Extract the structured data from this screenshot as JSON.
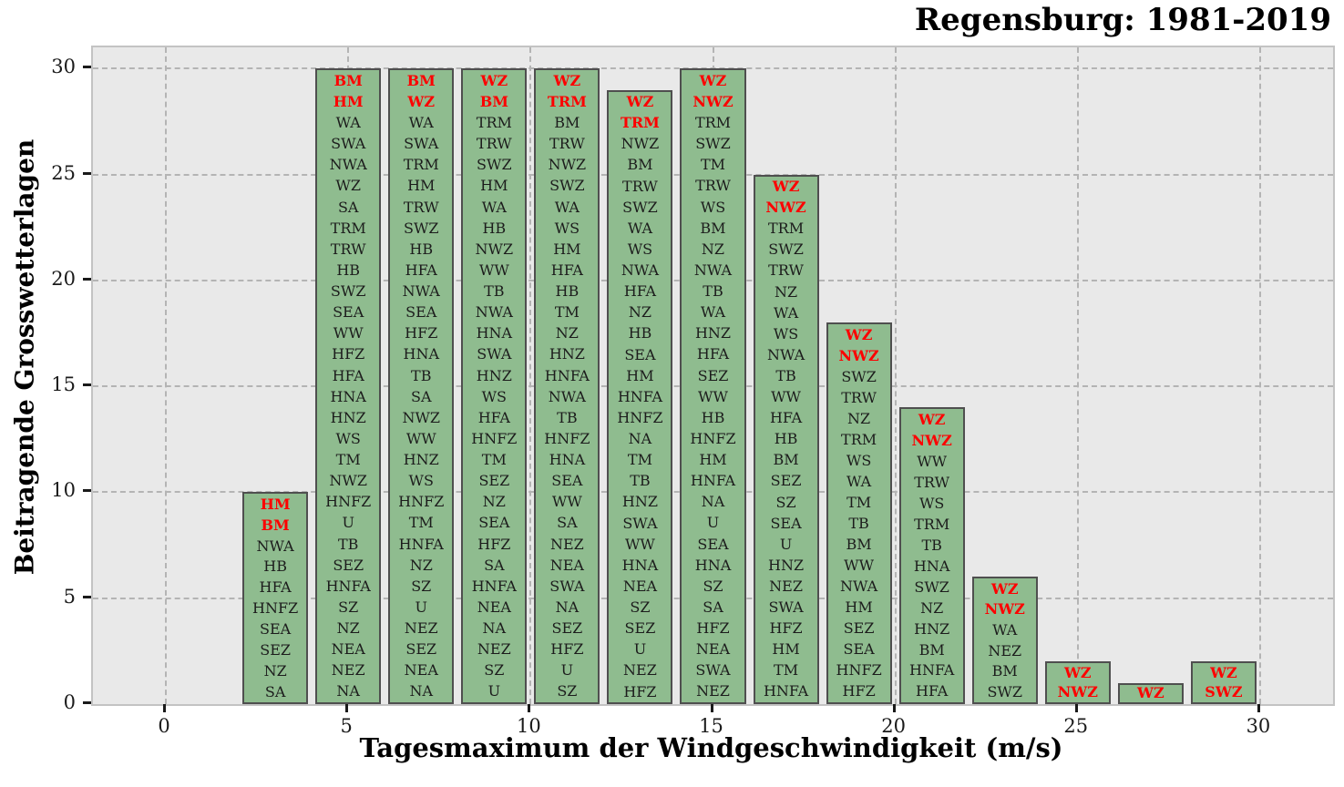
{
  "chart_data": {
    "type": "bar",
    "title": "Regensburg: 1981-2019",
    "xlabel": "Tagesmaximum der Windgeschwindigkeit (m/s)",
    "ylabel": "Beitragende Grosswetterlagen",
    "xlim": [
      -2,
      32
    ],
    "ylim": [
      0,
      31
    ],
    "xticks": [
      0,
      5,
      10,
      15,
      20,
      25,
      30
    ],
    "yticks": [
      0,
      5,
      10,
      15,
      20,
      25,
      30
    ],
    "grid": "both-dashed",
    "legend": "none",
    "bar_width": 1.8,
    "colors": {
      "bar_fill": "#8fbc8f",
      "bar_edge": "#4f4f4f",
      "highlight_label": "#fd0000",
      "normal_label": "#1c1c1c",
      "plot_background": "#e9e9e9",
      "gridline": "#b4b4b4"
    },
    "bars": [
      {
        "x": 3,
        "height": 10,
        "red_count": 2,
        "labels": [
          "HM",
          "BM",
          "NWA",
          "HB",
          "HFA",
          "HNFZ",
          "SEA",
          "SEZ",
          "NZ",
          "SA"
        ]
      },
      {
        "x": 5,
        "height": 30,
        "red_count": 2,
        "labels": [
          "BM",
          "HM",
          "WA",
          "SWA",
          "NWA",
          "WZ",
          "SA",
          "TRM",
          "TRW",
          "HB",
          "SWZ",
          "SEA",
          "WW",
          "HFZ",
          "HFA",
          "HNA",
          "HNZ",
          "WS",
          "TM",
          "NWZ",
          "HNFZ",
          "U",
          "TB",
          "SEZ",
          "HNFA",
          "SZ",
          "NZ",
          "NEA",
          "NEZ",
          "NA"
        ]
      },
      {
        "x": 7,
        "height": 30,
        "red_count": 2,
        "labels": [
          "BM",
          "WZ",
          "WA",
          "SWA",
          "TRM",
          "HM",
          "TRW",
          "SWZ",
          "HB",
          "HFA",
          "NWA",
          "SEA",
          "HFZ",
          "HNA",
          "TB",
          "SA",
          "NWZ",
          "WW",
          "HNZ",
          "WS",
          "HNFZ",
          "TM",
          "HNFA",
          "NZ",
          "SZ",
          "U",
          "NEZ",
          "SEZ",
          "NEA",
          "NA"
        ]
      },
      {
        "x": 9,
        "height": 30,
        "red_count": 2,
        "labels": [
          "WZ",
          "BM",
          "TRM",
          "TRW",
          "SWZ",
          "HM",
          "WA",
          "HB",
          "NWZ",
          "WW",
          "TB",
          "NWA",
          "HNA",
          "SWA",
          "HNZ",
          "WS",
          "HFA",
          "HNFZ",
          "TM",
          "SEZ",
          "NZ",
          "SEA",
          "HFZ",
          "SA",
          "HNFA",
          "NEA",
          "NA",
          "NEZ",
          "SZ",
          "U"
        ]
      },
      {
        "x": 11,
        "height": 30,
        "red_count": 2,
        "labels": [
          "WZ",
          "TRM",
          "BM",
          "TRW",
          "NWZ",
          "SWZ",
          "WA",
          "WS",
          "HM",
          "HFA",
          "HB",
          "TM",
          "NZ",
          "HNZ",
          "HNFA",
          "NWA",
          "TB",
          "HNFZ",
          "HNA",
          "SEA",
          "WW",
          "SA",
          "NEZ",
          "NEA",
          "SWA",
          "NA",
          "SEZ",
          "HFZ",
          "U",
          "SZ"
        ]
      },
      {
        "x": 13,
        "height": 29,
        "red_count": 2,
        "labels": [
          "WZ",
          "TRM",
          "NWZ",
          "BM",
          "TRW",
          "SWZ",
          "WA",
          "WS",
          "NWA",
          "HFA",
          "NZ",
          "HB",
          "SEA",
          "HM",
          "HNFA",
          "HNFZ",
          "NA",
          "TM",
          "TB",
          "HNZ",
          "SWA",
          "WW",
          "HNA",
          "NEA",
          "SZ",
          "SEZ",
          "U",
          "NEZ",
          "HFZ"
        ]
      },
      {
        "x": 15,
        "height": 30,
        "red_count": 2,
        "labels": [
          "WZ",
          "NWZ",
          "TRM",
          "SWZ",
          "TM",
          "TRW",
          "WS",
          "BM",
          "NZ",
          "NWA",
          "TB",
          "WA",
          "HNZ",
          "HFA",
          "SEZ",
          "WW",
          "HB",
          "HNFZ",
          "HM",
          "HNFA",
          "NA",
          "U",
          "SEA",
          "HNA",
          "SZ",
          "SA",
          "HFZ",
          "NEA",
          "SWA",
          "NEZ"
        ]
      },
      {
        "x": 17,
        "height": 25,
        "red_count": 2,
        "labels": [
          "WZ",
          "NWZ",
          "TRM",
          "SWZ",
          "TRW",
          "NZ",
          "WA",
          "WS",
          "NWA",
          "TB",
          "WW",
          "HFA",
          "HB",
          "BM",
          "SEZ",
          "SZ",
          "SEA",
          "U",
          "HNZ",
          "NEZ",
          "SWA",
          "HFZ",
          "HM",
          "TM",
          "HNFA"
        ]
      },
      {
        "x": 19,
        "height": 18,
        "red_count": 2,
        "labels": [
          "WZ",
          "NWZ",
          "SWZ",
          "TRW",
          "NZ",
          "TRM",
          "WS",
          "WA",
          "TM",
          "TB",
          "BM",
          "WW",
          "NWA",
          "HM",
          "SEZ",
          "SEA",
          "HNFZ",
          "HFZ"
        ]
      },
      {
        "x": 21,
        "height": 14,
        "red_count": 2,
        "labels": [
          "WZ",
          "NWZ",
          "WW",
          "TRW",
          "WS",
          "TRM",
          "TB",
          "HNA",
          "SWZ",
          "NZ",
          "HNZ",
          "BM",
          "HNFA",
          "HFA"
        ]
      },
      {
        "x": 23,
        "height": 6,
        "red_count": 2,
        "labels": [
          "WZ",
          "NWZ",
          "WA",
          "NEZ",
          "BM",
          "SWZ"
        ]
      },
      {
        "x": 25,
        "height": 2,
        "red_count": 2,
        "labels": [
          "WZ",
          "NWZ"
        ]
      },
      {
        "x": 27,
        "height": 1,
        "red_count": 1,
        "labels": [
          "WZ"
        ]
      },
      {
        "x": 29,
        "height": 2,
        "red_count": 2,
        "labels": [
          "WZ",
          "SWZ"
        ]
      }
    ]
  }
}
